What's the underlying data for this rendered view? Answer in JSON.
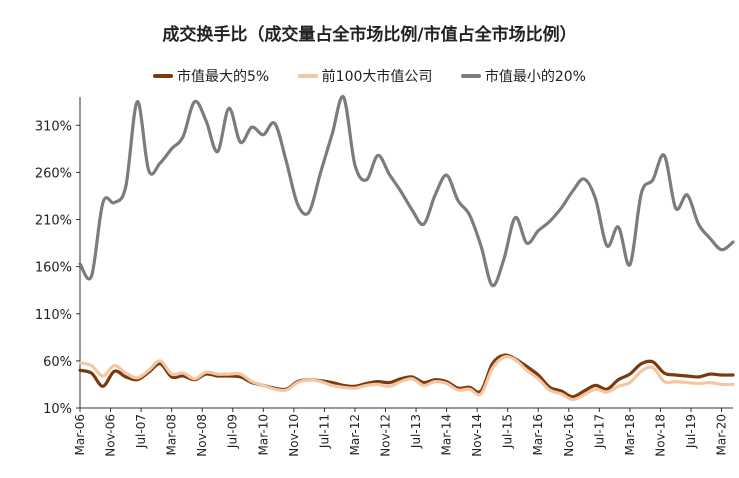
{
  "chart_data": {
    "type": "line",
    "title": "成交换手比（成交量占全市场比例/市值占全市场比例）",
    "xlabel": "",
    "ylabel": "",
    "ylim": [
      10,
      340
    ],
    "y_ticks": [
      "10%",
      "60%",
      "110%",
      "160%",
      "210%",
      "260%",
      "310%"
    ],
    "y_tick_values": [
      10,
      60,
      110,
      160,
      210,
      260,
      310
    ],
    "x_tick_labels": [
      "Mar-06",
      "Nov-06",
      "Jul-07",
      "Mar-08",
      "Nov-08",
      "Jul-09",
      "Mar-10",
      "Nov-10",
      "Jul-11",
      "Mar-12",
      "Nov-12",
      "Jul-13",
      "Mar-14",
      "Nov-14",
      "Jul-15",
      "Mar-16",
      "Nov-16",
      "Jul-17",
      "Mar-18",
      "Nov-18",
      "Jul-19",
      "Mar-20"
    ],
    "x_start": "2006-03",
    "x_end": "2020-06",
    "legend_position": "top",
    "grid": false,
    "series": [
      {
        "name": "市值最大的5%",
        "color": "#7a3a10",
        "points": [
          [
            "2006-03",
            50
          ],
          [
            "2006-06",
            47
          ],
          [
            "2006-09",
            33
          ],
          [
            "2006-12",
            49
          ],
          [
            "2007-03",
            43
          ],
          [
            "2007-06",
            40
          ],
          [
            "2007-09",
            48
          ],
          [
            "2007-12",
            57
          ],
          [
            "2008-03",
            43
          ],
          [
            "2008-06",
            44
          ],
          [
            "2008-09",
            40
          ],
          [
            "2008-12",
            46
          ],
          [
            "2009-03",
            44
          ],
          [
            "2009-06",
            44
          ],
          [
            "2009-09",
            43
          ],
          [
            "2009-12",
            37
          ],
          [
            "2010-03",
            34
          ],
          [
            "2010-06",
            31
          ],
          [
            "2010-09",
            30
          ],
          [
            "2010-12",
            38
          ],
          [
            "2011-03",
            40
          ],
          [
            "2011-06",
            39
          ],
          [
            "2011-09",
            37
          ],
          [
            "2011-12",
            34
          ],
          [
            "2012-03",
            33
          ],
          [
            "2012-06",
            36
          ],
          [
            "2012-09",
            38
          ],
          [
            "2012-12",
            37
          ],
          [
            "2013-03",
            41
          ],
          [
            "2013-06",
            43
          ],
          [
            "2013-09",
            37
          ],
          [
            "2013-12",
            40
          ],
          [
            "2014-03",
            38
          ],
          [
            "2014-06",
            31
          ],
          [
            "2014-09",
            32
          ],
          [
            "2014-12",
            28
          ],
          [
            "2015-03",
            57
          ],
          [
            "2015-06",
            66
          ],
          [
            "2015-09",
            62
          ],
          [
            "2015-12",
            54
          ],
          [
            "2016-03",
            45
          ],
          [
            "2016-06",
            32
          ],
          [
            "2016-09",
            28
          ],
          [
            "2016-12",
            22
          ],
          [
            "2017-03",
            28
          ],
          [
            "2017-06",
            34
          ],
          [
            "2017-09",
            30
          ],
          [
            "2017-12",
            40
          ],
          [
            "2018-03",
            46
          ],
          [
            "2018-06",
            57
          ],
          [
            "2018-09",
            59
          ],
          [
            "2018-12",
            47
          ],
          [
            "2019-03",
            45
          ],
          [
            "2019-06",
            44
          ],
          [
            "2019-09",
            43
          ],
          [
            "2019-12",
            46
          ],
          [
            "2020-03",
            45
          ],
          [
            "2020-06",
            45
          ]
        ]
      },
      {
        "name": "前100大市值公司",
        "color": "#f5c6a2",
        "points": [
          [
            "2006-03",
            58
          ],
          [
            "2006-06",
            55
          ],
          [
            "2006-09",
            44
          ],
          [
            "2006-12",
            55
          ],
          [
            "2007-03",
            47
          ],
          [
            "2007-06",
            42
          ],
          [
            "2007-09",
            50
          ],
          [
            "2007-12",
            60
          ],
          [
            "2008-03",
            46
          ],
          [
            "2008-06",
            47
          ],
          [
            "2008-09",
            41
          ],
          [
            "2008-12",
            48
          ],
          [
            "2009-03",
            46
          ],
          [
            "2009-06",
            46
          ],
          [
            "2009-09",
            46
          ],
          [
            "2009-12",
            38
          ],
          [
            "2010-03",
            34
          ],
          [
            "2010-06",
            30
          ],
          [
            "2010-09",
            29
          ],
          [
            "2010-12",
            37
          ],
          [
            "2011-03",
            40
          ],
          [
            "2011-06",
            38
          ],
          [
            "2011-09",
            34
          ],
          [
            "2011-12",
            32
          ],
          [
            "2012-03",
            31
          ],
          [
            "2012-06",
            34
          ],
          [
            "2012-09",
            35
          ],
          [
            "2012-12",
            33
          ],
          [
            "2013-03",
            38
          ],
          [
            "2013-06",
            41
          ],
          [
            "2013-09",
            34
          ],
          [
            "2013-12",
            38
          ],
          [
            "2014-03",
            36
          ],
          [
            "2014-06",
            29
          ],
          [
            "2014-09",
            30
          ],
          [
            "2014-12",
            25
          ],
          [
            "2015-03",
            52
          ],
          [
            "2015-06",
            64
          ],
          [
            "2015-09",
            61
          ],
          [
            "2015-12",
            50
          ],
          [
            "2016-03",
            41
          ],
          [
            "2016-06",
            29
          ],
          [
            "2016-09",
            25
          ],
          [
            "2016-12",
            19
          ],
          [
            "2017-03",
            24
          ],
          [
            "2017-06",
            30
          ],
          [
            "2017-09",
            27
          ],
          [
            "2017-12",
            33
          ],
          [
            "2018-03",
            37
          ],
          [
            "2018-06",
            49
          ],
          [
            "2018-09",
            53
          ],
          [
            "2018-12",
            38
          ],
          [
            "2019-03",
            38
          ],
          [
            "2019-06",
            37
          ],
          [
            "2019-09",
            36
          ],
          [
            "2019-12",
            37
          ],
          [
            "2020-03",
            35
          ],
          [
            "2020-06",
            35
          ]
        ]
      },
      {
        "name": "市值最小的20%",
        "color": "#7c7c7c",
        "points": [
          [
            "2006-03",
            163
          ],
          [
            "2006-06",
            150
          ],
          [
            "2006-09",
            228
          ],
          [
            "2006-12",
            228
          ],
          [
            "2007-03",
            245
          ],
          [
            "2007-06",
            335
          ],
          [
            "2007-09",
            262
          ],
          [
            "2007-12",
            270
          ],
          [
            "2008-03",
            285
          ],
          [
            "2008-06",
            298
          ],
          [
            "2008-09",
            335
          ],
          [
            "2008-12",
            315
          ],
          [
            "2009-03",
            282
          ],
          [
            "2009-06",
            328
          ],
          [
            "2009-09",
            292
          ],
          [
            "2009-12",
            308
          ],
          [
            "2010-03",
            300
          ],
          [
            "2010-06",
            312
          ],
          [
            "2010-09",
            272
          ],
          [
            "2010-12",
            226
          ],
          [
            "2011-03",
            218
          ],
          [
            "2011-06",
            260
          ],
          [
            "2011-09",
            300
          ],
          [
            "2011-12",
            340
          ],
          [
            "2012-03",
            268
          ],
          [
            "2012-06",
            252
          ],
          [
            "2012-09",
            278
          ],
          [
            "2012-12",
            258
          ],
          [
            "2013-03",
            240
          ],
          [
            "2013-06",
            220
          ],
          [
            "2013-09",
            205
          ],
          [
            "2013-12",
            236
          ],
          [
            "2014-03",
            257
          ],
          [
            "2014-06",
            230
          ],
          [
            "2014-09",
            215
          ],
          [
            "2014-12",
            182
          ],
          [
            "2015-03",
            140
          ],
          [
            "2015-06",
            168
          ],
          [
            "2015-09",
            212
          ],
          [
            "2015-12",
            185
          ],
          [
            "2016-03",
            198
          ],
          [
            "2016-06",
            208
          ],
          [
            "2016-09",
            222
          ],
          [
            "2016-12",
            240
          ],
          [
            "2017-03",
            253
          ],
          [
            "2017-06",
            232
          ],
          [
            "2017-09",
            182
          ],
          [
            "2017-12",
            202
          ],
          [
            "2018-03",
            162
          ],
          [
            "2018-06",
            238
          ],
          [
            "2018-09",
            252
          ],
          [
            "2018-12",
            278
          ],
          [
            "2019-03",
            222
          ],
          [
            "2019-06",
            236
          ],
          [
            "2019-09",
            205
          ],
          [
            "2019-12",
            190
          ],
          [
            "2020-03",
            178
          ],
          [
            "2020-06",
            186
          ]
        ]
      }
    ]
  }
}
